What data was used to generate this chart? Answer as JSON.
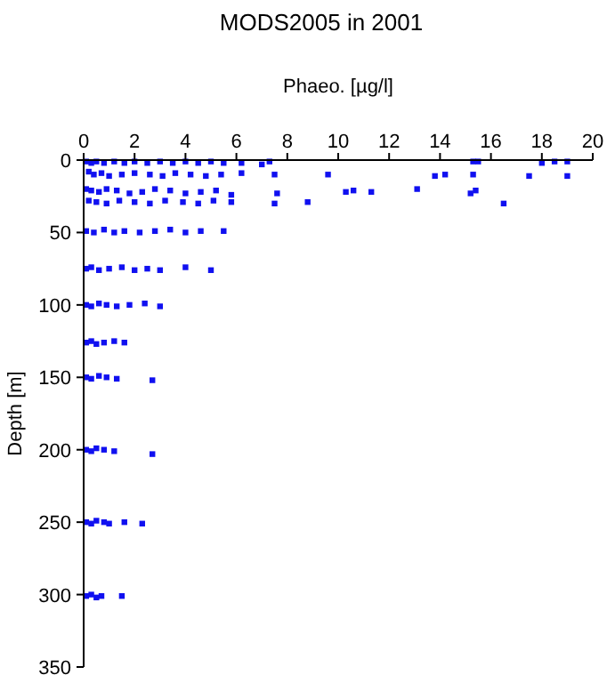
{
  "chart_data": {
    "type": "scatter",
    "title": "MODS2005 in 2001",
    "xlabel": "Phaeo. [µg/l]",
    "ylabel": "Depth [m]",
    "xlim": [
      0,
      20
    ],
    "xticks": [
      0,
      2,
      4,
      6,
      8,
      10,
      12,
      14,
      16,
      18,
      20
    ],
    "ylim": [
      350,
      0
    ],
    "yticks": [
      0,
      50,
      100,
      150,
      200,
      250,
      300,
      350
    ],
    "marker": "square",
    "grid": false,
    "series": [
      {
        "color": "#1010f0",
        "x": [
          0.1,
          0.3,
          0.5,
          0.8,
          1.2,
          1.6,
          2.0,
          2.5,
          3.0,
          3.5,
          4.0,
          4.5,
          5.0,
          5.5,
          6.2,
          7.0,
          7.3,
          15.3,
          15.5,
          18.0,
          18.5,
          19.0,
          0.2,
          0.4,
          0.7,
          1.0,
          1.5,
          2.0,
          2.6,
          3.1,
          3.6,
          4.2,
          4.8,
          5.4,
          6.2,
          7.5,
          9.6,
          13.8,
          14.2,
          15.3,
          17.5,
          19.0,
          0.1,
          0.3,
          0.6,
          0.9,
          1.3,
          1.8,
          2.3,
          2.8,
          3.4,
          4.0,
          4.6,
          5.2,
          5.8,
          7.6,
          10.3,
          10.6,
          11.3,
          13.1,
          15.2,
          15.4,
          0.2,
          0.5,
          0.9,
          1.4,
          2.0,
          2.6,
          3.2,
          3.9,
          4.5,
          5.1,
          5.8,
          7.5,
          8.8,
          16.5,
          0.1,
          0.4,
          0.8,
          1.2,
          1.6,
          2.2,
          2.8,
          3.4,
          4.0,
          4.6,
          5.5,
          0.1,
          0.3,
          0.6,
          1.0,
          1.5,
          2.0,
          2.5,
          3.0,
          4.0,
          5.0,
          0.1,
          0.3,
          0.6,
          0.9,
          1.3,
          1.8,
          2.4,
          3.0,
          0.1,
          0.3,
          0.5,
          0.8,
          1.2,
          1.6,
          0.1,
          0.3,
          0.6,
          0.9,
          1.3,
          2.7,
          0.1,
          0.3,
          0.5,
          0.8,
          1.2,
          2.7,
          0.1,
          0.3,
          0.5,
          0.8,
          1.0,
          1.6,
          2.3,
          0.1,
          0.3,
          0.5,
          0.7,
          1.5
        ],
        "values": [
          1,
          2,
          1,
          2,
          1,
          2,
          1,
          2,
          1,
          2,
          1,
          2,
          1,
          2,
          2,
          3,
          1,
          1,
          1,
          2,
          1,
          1,
          8,
          10,
          9,
          11,
          10,
          9,
          10,
          11,
          9,
          10,
          11,
          10,
          9,
          10,
          10,
          11,
          10,
          10,
          11,
          11,
          20,
          21,
          22,
          20,
          21,
          23,
          22,
          20,
          21,
          23,
          22,
          21,
          24,
          23,
          22,
          21,
          22,
          20,
          23,
          21,
          28,
          29,
          30,
          28,
          29,
          30,
          28,
          29,
          30,
          28,
          29,
          30,
          29,
          30,
          49,
          50,
          48,
          50,
          49,
          50,
          49,
          48,
          50,
          49,
          49,
          75,
          74,
          76,
          75,
          74,
          76,
          75,
          76,
          74,
          76,
          100,
          101,
          99,
          100,
          101,
          100,
          99,
          101,
          126,
          125,
          127,
          126,
          125,
          126,
          150,
          151,
          149,
          150,
          151,
          152,
          200,
          201,
          199,
          200,
          201,
          203,
          250,
          251,
          249,
          250,
          251,
          250,
          251,
          301,
          300,
          302,
          301,
          301
        ]
      }
    ]
  }
}
